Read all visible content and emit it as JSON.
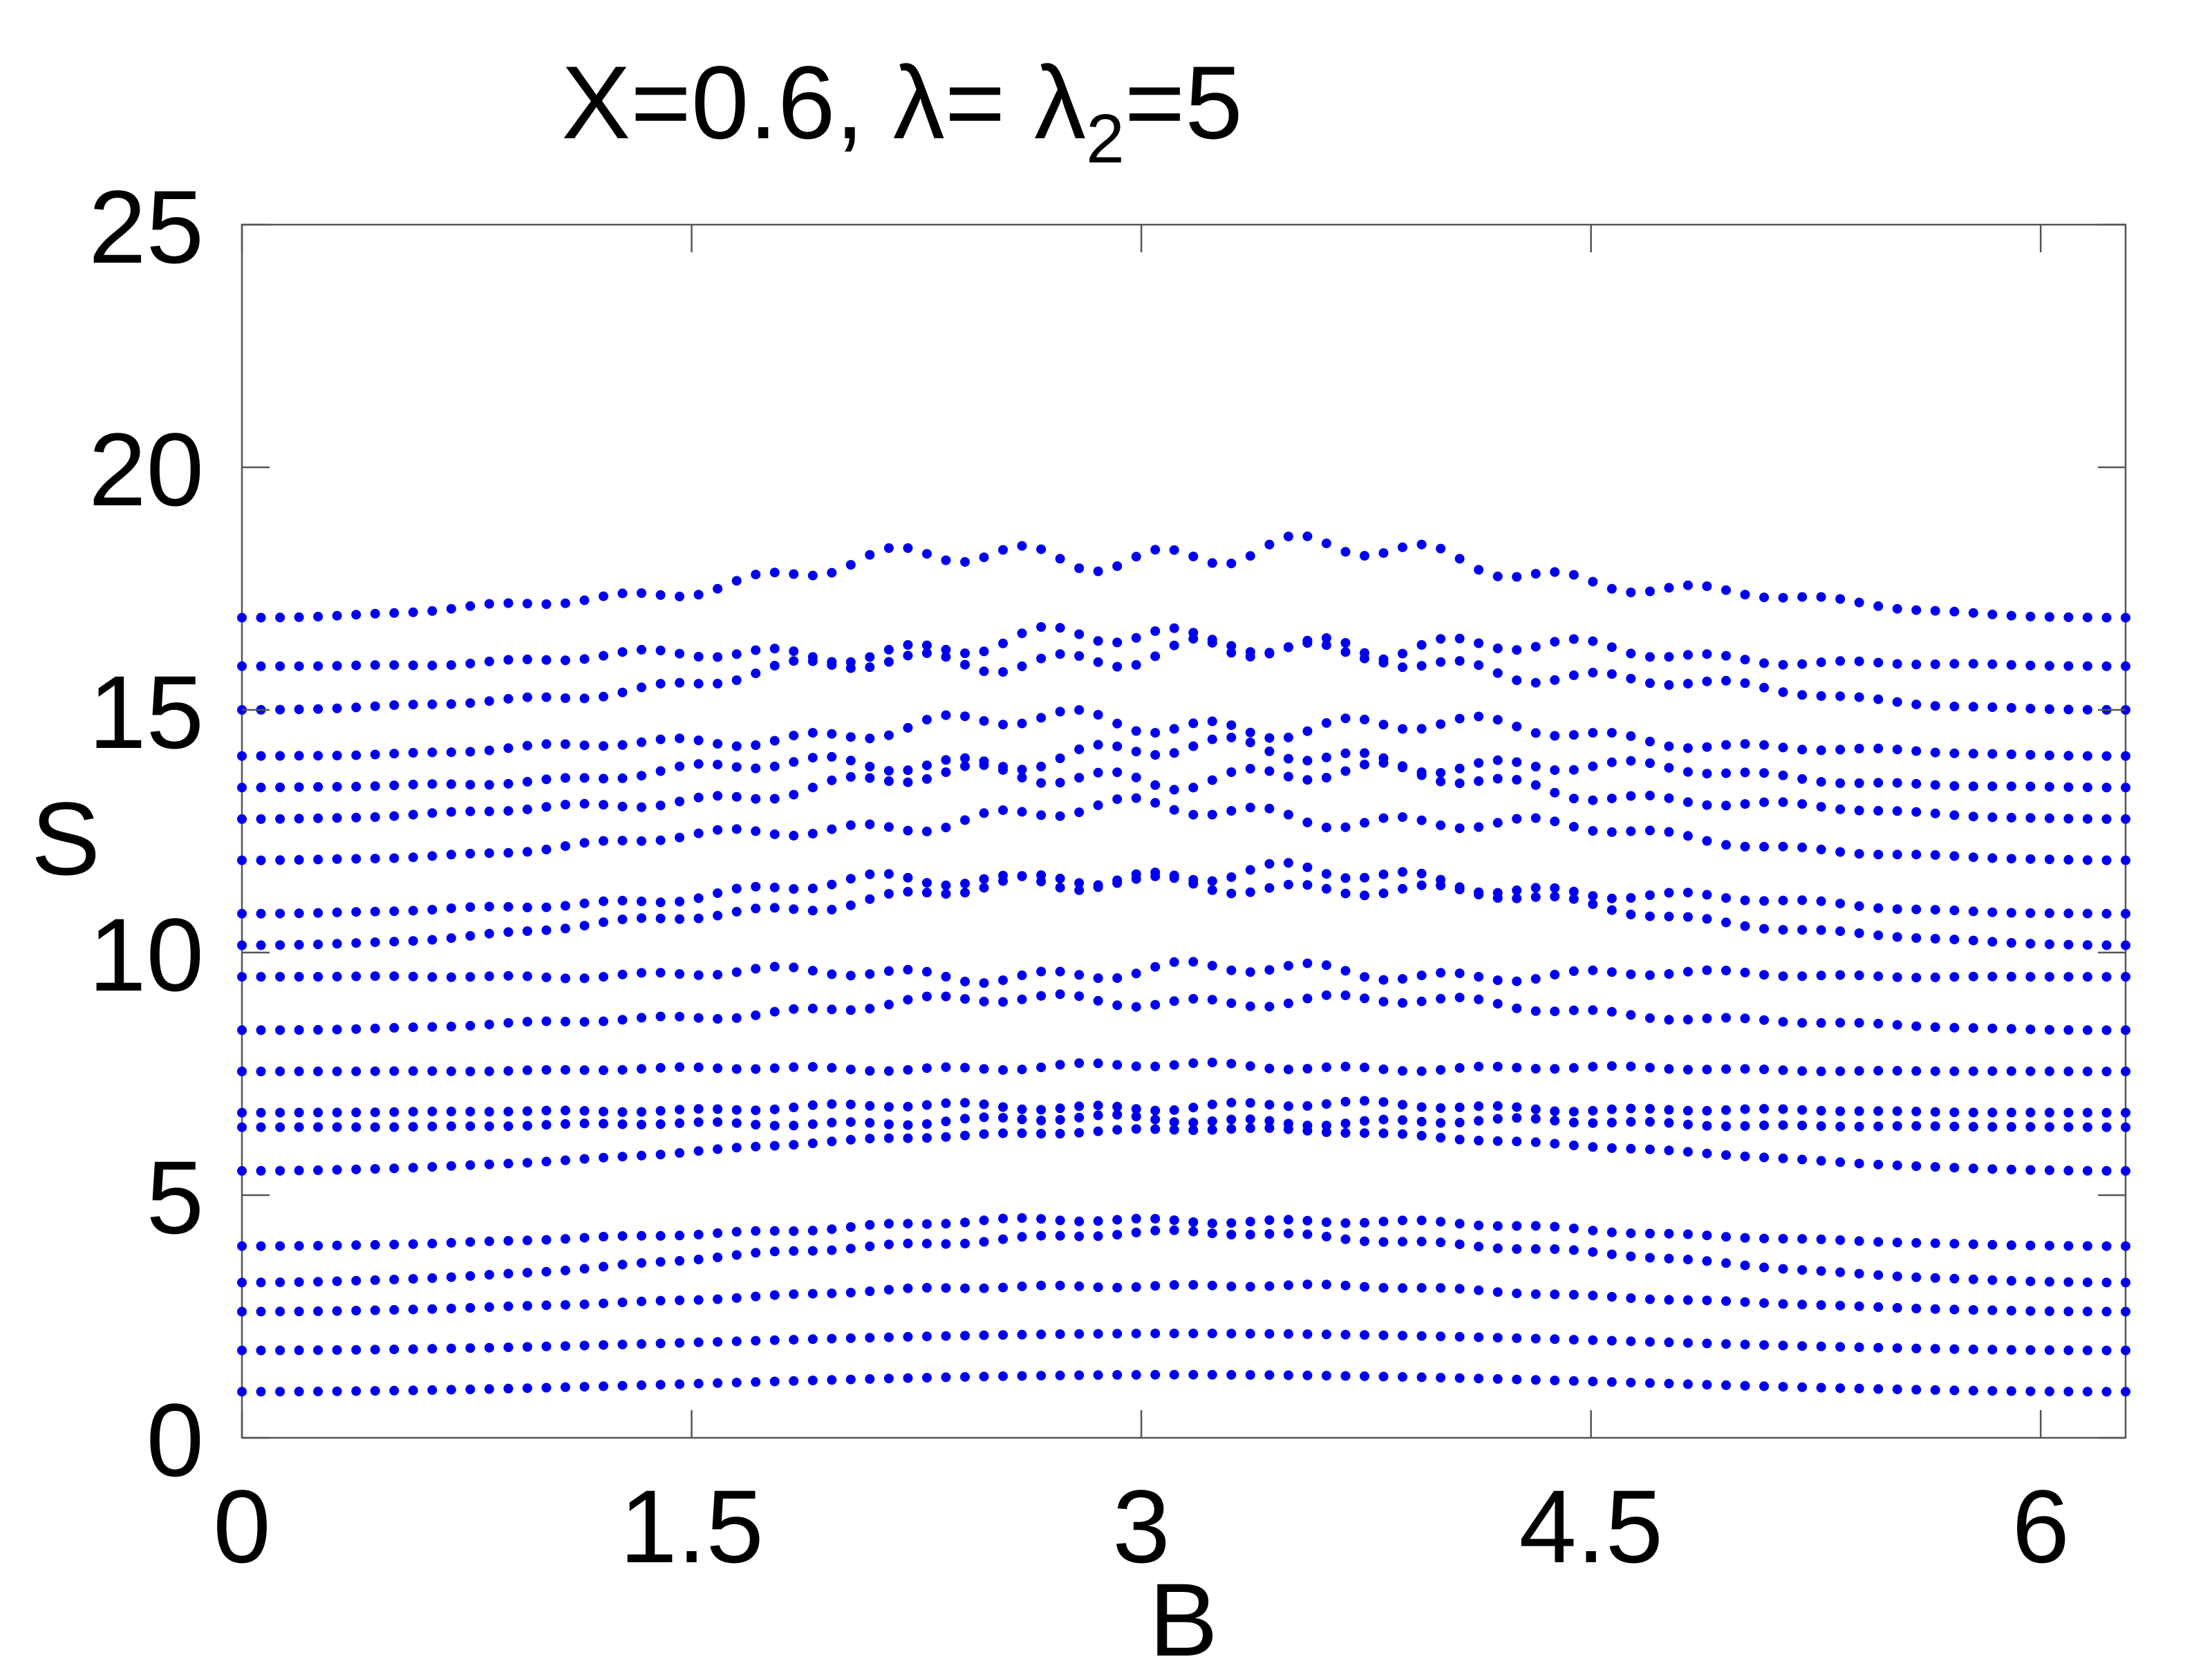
{
  "chart_data": {
    "type": "scatter",
    "title": {
      "prefix": "X=0.6, λ= λ",
      "subscript": "2",
      "suffix": "=5"
    },
    "xlabel": "B",
    "ylabel": "S",
    "xlim": [
      0,
      6.2832
    ],
    "ylim": [
      0,
      25
    ],
    "xticks": [
      {
        "value": 0,
        "label": "0"
      },
      {
        "value": 1.5,
        "label": "1.5"
      },
      {
        "value": 3,
        "label": "3"
      },
      {
        "value": 4.5,
        "label": "4.5"
      },
      {
        "value": 6,
        "label": "6"
      }
    ],
    "yticks": [
      {
        "value": 0,
        "label": "0"
      },
      {
        "value": 5,
        "label": "5"
      },
      {
        "value": 10,
        "label": "10"
      },
      {
        "value": 15,
        "label": "15"
      },
      {
        "value": 20,
        "label": "20"
      },
      {
        "value": 25,
        "label": "25"
      }
    ],
    "grid": false,
    "marker_color": "#0000ee",
    "x_samples": 100,
    "series": [
      {
        "s0": 0.95,
        "peak": 0.35,
        "jitter": 0.0
      },
      {
        "s0": 1.8,
        "peak": 0.35,
        "jitter": 0.0
      },
      {
        "s0": 2.6,
        "peak": 0.55,
        "jitter": 0.05
      },
      {
        "s0": 3.2,
        "peak": 1.0,
        "jitter": 0.08
      },
      {
        "s0": 3.95,
        "peak": 0.55,
        "jitter": 0.08
      },
      {
        "s0": 5.5,
        "peak": 0.85,
        "jitter": 0.05
      },
      {
        "s0": 6.4,
        "peak": 0.15,
        "jitter": 0.12
      },
      {
        "s0": 6.7,
        "peak": 0.15,
        "jitter": 0.12
      },
      {
        "s0": 7.55,
        "peak": 0.1,
        "jitter": 0.1
      },
      {
        "s0": 8.4,
        "peak": 0.65,
        "jitter": 0.2
      },
      {
        "s0": 9.5,
        "peak": 0.1,
        "jitter": 0.25
      },
      {
        "s0": 10.15,
        "peak": 1.3,
        "jitter": 0.25
      },
      {
        "s0": 10.8,
        "peak": 0.8,
        "jitter": 0.3
      },
      {
        "s0": 11.9,
        "peak": 1.0,
        "jitter": 0.3
      },
      {
        "s0": 12.75,
        "peak": 0.95,
        "jitter": 0.35
      },
      {
        "s0": 13.4,
        "peak": 0.7,
        "jitter": 0.35
      },
      {
        "s0": 14.05,
        "peak": 0.7,
        "jitter": 0.35
      },
      {
        "s0": 15.0,
        "peak": 1.2,
        "jitter": 0.4
      },
      {
        "s0": 15.9,
        "peak": 0.5,
        "jitter": 0.4
      },
      {
        "s0": 16.9,
        "peak": 1.4,
        "jitter": 0.45
      }
    ]
  }
}
